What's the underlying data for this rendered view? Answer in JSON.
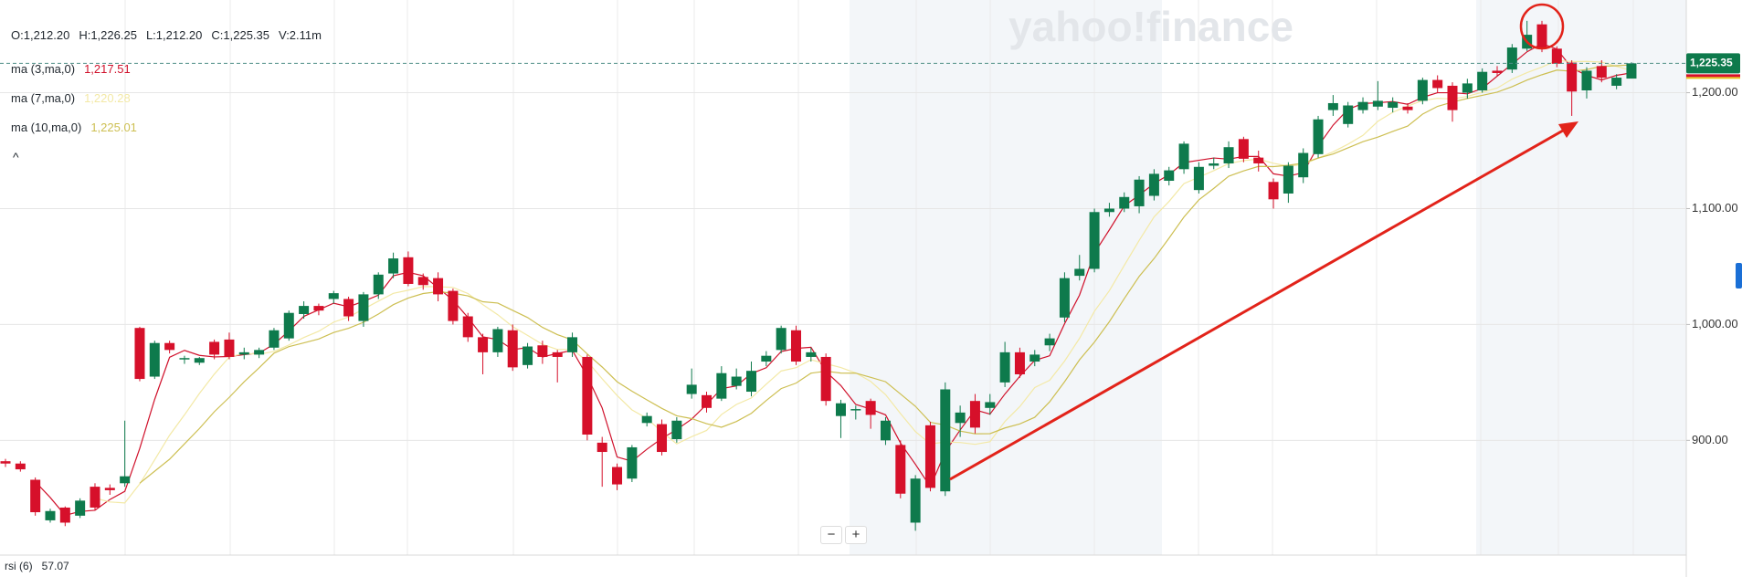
{
  "chart_data": {
    "type": "candlestick",
    "watermark": "yahoo!finance",
    "ohlc_legend": [
      "O:1,212.20",
      "H:1,226.25",
      "L:1,212.20",
      "C:1,225.35",
      "V:2.11m"
    ],
    "indicators": [
      {
        "name": "ma (3,ma,0)",
        "value": "1,217.51",
        "color": "#d0112b"
      },
      {
        "name": "ma (7,ma,0)",
        "value": "1,220.28",
        "color": "#f3e9a6"
      },
      {
        "name": "ma (10,ma,0)",
        "value": "1,225.01",
        "color": "#cdbf52"
      }
    ],
    "collapse_icon": "^",
    "rsi": {
      "name": "rsi (6)",
      "value": "57.07"
    },
    "zoom_buttons": [
      "−",
      "+"
    ],
    "price_tag": "1,225.35",
    "up_color": "#0e7a4c",
    "down_color": "#d6102a",
    "ylim": [
      801,
      1280
    ],
    "yticks": [
      {
        "value": 1200,
        "label": "1,200.00"
      },
      {
        "value": 1100,
        "label": "1,100.00"
      },
      {
        "value": 1000,
        "label": "1,000.00"
      },
      {
        "value": 900,
        "label": "900.00"
      }
    ],
    "grid": true,
    "series": {
      "open": [
        882,
        880,
        866,
        831,
        842,
        835,
        860,
        859,
        863,
        997,
        955,
        984,
        970,
        967,
        985,
        987,
        974,
        974,
        980,
        988,
        1009,
        1016,
        1022,
        1022,
        1003,
        1026,
        1044,
        1058,
        1041,
        1040,
        1029,
        1007,
        989,
        976,
        995,
        965,
        982,
        976,
        976,
        972,
        898,
        877,
        867,
        915,
        914,
        901,
        940,
        939,
        936,
        947,
        942,
        968,
        978,
        995,
        972,
        972,
        921,
        926,
        934,
        900,
        896,
        829,
        913,
        856,
        915,
        934,
        928,
        950,
        976,
        968,
        982,
        1006,
        1042,
        1048,
        1097,
        1100,
        1102,
        1111,
        1124,
        1134,
        1116,
        1137,
        1139,
        1160,
        1144,
        1123,
        1113,
        1127,
        1147,
        1185,
        1173,
        1185,
        1188,
        1187,
        1188,
        1193,
        1211,
        1206,
        1200,
        1202,
        1219,
        1220,
        1238,
        1259,
        1238,
        1226,
        1202,
        1223,
        1206,
        1212.2
      ],
      "high": [
        884,
        882,
        868,
        841,
        843,
        850,
        863,
        862,
        917,
        998,
        986,
        986,
        973,
        972,
        987,
        993,
        980,
        980,
        997,
        1012,
        1020,
        1018,
        1029,
        1024,
        1028,
        1045,
        1062,
        1063,
        1044,
        1045,
        1031,
        1010,
        992,
        998,
        1000,
        984,
        986,
        978,
        993,
        974,
        903,
        880,
        896,
        924,
        918,
        920,
        962,
        942,
        964,
        962,
        968,
        977,
        999,
        999,
        980,
        975,
        935,
        930,
        936,
        920,
        900,
        870,
        916,
        950,
        930,
        940,
        940,
        985,
        980,
        978,
        992,
        1045,
        1060,
        1100,
        1105,
        1114,
        1128,
        1134,
        1136,
        1158,
        1140,
        1144,
        1158,
        1162,
        1150,
        1126,
        1140,
        1152,
        1180,
        1198,
        1192,
        1196,
        1210,
        1196,
        1191,
        1213,
        1215,
        1209,
        1212,
        1221,
        1223,
        1242,
        1262,
        1262,
        1240,
        1228,
        1222,
        1228,
        1216,
        1226.25
      ],
      "low": [
        877,
        873,
        835,
        829,
        826,
        833,
        840,
        853,
        860,
        951,
        953,
        975,
        966,
        965,
        970,
        970,
        970,
        971,
        978,
        986,
        1005,
        1008,
        1018,
        1003,
        998,
        1022,
        1040,
        1033,
        1030,
        1020,
        1000,
        985,
        957,
        972,
        960,
        962,
        966,
        950,
        972,
        900,
        860,
        857,
        864,
        912,
        887,
        898,
        936,
        924,
        934,
        944,
        938,
        964,
        975,
        965,
        968,
        930,
        902,
        918,
        910,
        896,
        850,
        822,
        856,
        852,
        903,
        906,
        922,
        946,
        954,
        964,
        977,
        1002,
        1038,
        1045,
        1093,
        1097,
        1096,
        1107,
        1120,
        1130,
        1113,
        1134,
        1135,
        1140,
        1132,
        1100,
        1105,
        1122,
        1144,
        1180,
        1170,
        1182,
        1185,
        1183,
        1182,
        1190,
        1200,
        1175,
        1195,
        1200,
        1214,
        1217,
        1236,
        1235,
        1222,
        1180,
        1195,
        1209,
        1203,
        1212.2
      ],
      "close": [
        880,
        875,
        838,
        839,
        829,
        848,
        842,
        857,
        869,
        953,
        984,
        978,
        971,
        971,
        974,
        972,
        976,
        978,
        995,
        1010,
        1016,
        1012,
        1027,
        1007,
        1026,
        1043,
        1057,
        1035,
        1034,
        1026,
        1003,
        989,
        976,
        996,
        963,
        981,
        972,
        972,
        989,
        905,
        890,
        862,
        894,
        921,
        890,
        917,
        948,
        928,
        958,
        955,
        960,
        973,
        997,
        968,
        976,
        934,
        932,
        927,
        922,
        917,
        854,
        867,
        859,
        944,
        924,
        911,
        933,
        976,
        957,
        974,
        988,
        1040,
        1048,
        1097,
        1100,
        1110,
        1125,
        1130,
        1133,
        1156,
        1136,
        1139,
        1153,
        1143,
        1139,
        1108,
        1137,
        1148,
        1177,
        1191,
        1189,
        1192,
        1193,
        1192,
        1185,
        1211,
        1204,
        1185,
        1208,
        1218,
        1217,
        1239,
        1250,
        1238,
        1225,
        1201,
        1219,
        1213,
        1213,
        1225.35
      ]
    }
  }
}
